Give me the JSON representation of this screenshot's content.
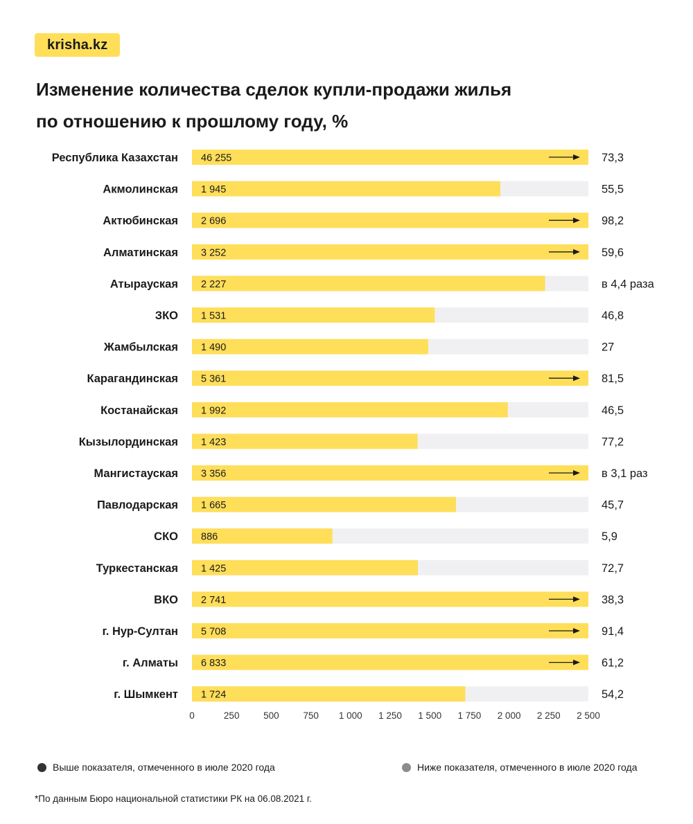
{
  "logo": "krisha.kz",
  "title_line1": "Изменение количества сделок купли-продажи жилья",
  "title_line2": "по отношению к прошлому году, %",
  "legend": {
    "above": "Выше показателя, отмеченного в июле 2020 года",
    "below": "Ниже показателя, отмеченного в июле 2020 года",
    "above_color": "#333333",
    "below_color": "#8c8c8c"
  },
  "footnote": "*По данным Бюро национальной статистики РК на 06.08.2021 г.",
  "colors": {
    "bar": "#ffde5a",
    "track": "#f0f0f2",
    "brand": "#ffde5a"
  },
  "chart_data": {
    "type": "bar",
    "orientation": "horizontal",
    "xlim": [
      0,
      2500
    ],
    "xticks": [
      0,
      250,
      500,
      750,
      1000,
      1250,
      1500,
      1750,
      2000,
      2250,
      2500
    ],
    "xtick_labels": [
      "0",
      "250",
      "500",
      "750",
      "1 000",
      "1 250",
      "1 500",
      "1 750",
      "2 000",
      "2 250",
      "2 500"
    ],
    "categories": [
      "Республика Казахстан",
      "Акмолинская",
      "Актюбинская",
      "Алматинская",
      "Атырауская",
      "ЗКО",
      "Жамбылская",
      "Карагандинская",
      "Костанайская",
      "Кызылординская",
      "Мангистауская",
      "Павлодарская",
      "СКО",
      "Туркестанская",
      "ВКО",
      "г. Нур-Султан",
      "г. Алматы",
      "г. Шымкент"
    ],
    "values": [
      46255,
      1945,
      2696,
      3252,
      2227,
      1531,
      1490,
      5361,
      1992,
      1423,
      3356,
      1665,
      886,
      1425,
      2741,
      5708,
      6833,
      1724
    ],
    "value_labels": [
      "46 255",
      "1 945",
      "2 696",
      "3 252",
      "2 227",
      "1 531",
      "1 490",
      "5 361",
      "1 992",
      "1 423",
      "3 356",
      "1 665",
      "886",
      "1 425",
      "2 741",
      "5 708",
      "6 833",
      "1 724"
    ],
    "change_labels": [
      "73,3",
      "55,5",
      "98,2",
      "59,6",
      "в 4,4 раза",
      "46,8",
      "27",
      "81,5",
      "46,5",
      "77,2",
      "в 3,1 раз",
      "45,7",
      "5,9",
      "72,7",
      "38,3",
      "91,4",
      "61,2",
      "54,2"
    ],
    "overflow": [
      true,
      false,
      true,
      true,
      false,
      false,
      false,
      true,
      false,
      false,
      true,
      false,
      false,
      false,
      true,
      true,
      true,
      false
    ]
  }
}
